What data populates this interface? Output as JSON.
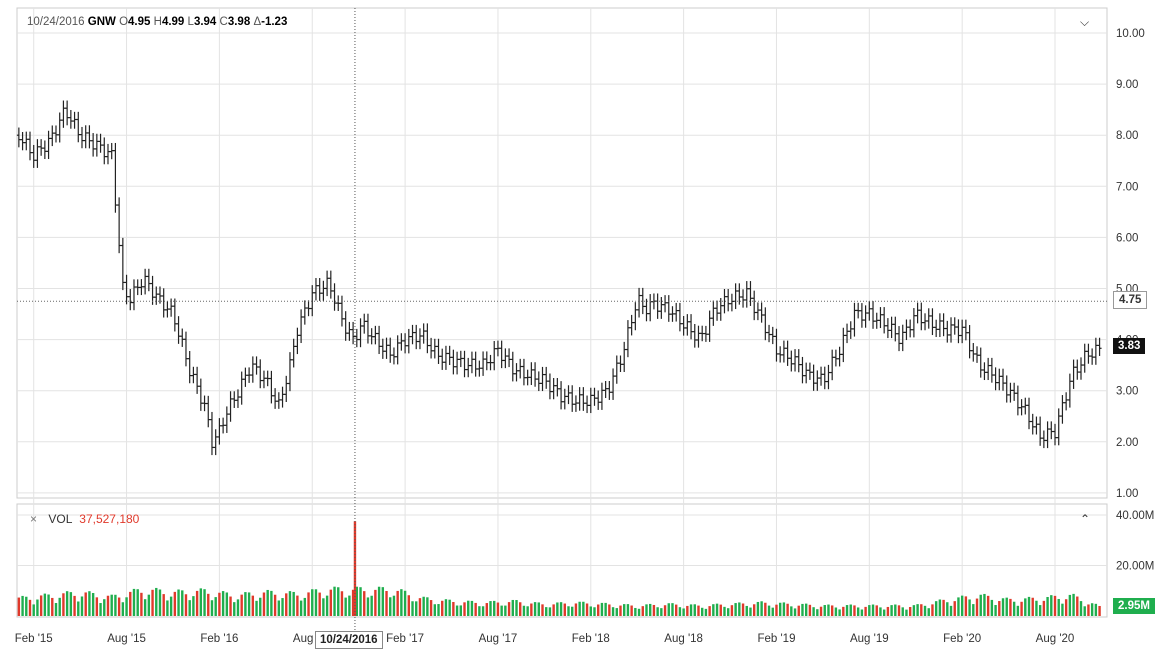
{
  "ohlc": {
    "date": "10/24/2016",
    "symbol": "GNW",
    "o_label": "O",
    "o_value": "4.95",
    "h_label": "H",
    "h_value": "4.99",
    "l_label": "L",
    "l_value": "3.94",
    "c_label": "C",
    "c_value": "3.98",
    "d_label": "Δ",
    "d_value": "-1.23"
  },
  "volume_panel": {
    "close_glyph": "×",
    "label": "VOL",
    "value": "37,527,180"
  },
  "crosshair": {
    "date_label": "10/24/2016"
  },
  "badges": {
    "reference": "4.75",
    "last": "3.83",
    "volume": "2.95M"
  },
  "colors": {
    "up": "#1fae4e",
    "down": "#e0392b",
    "bar": "#222222",
    "grid": "#e3e3e3"
  },
  "icons": {
    "collapse_price": "chevron-down-icon",
    "collapse_volume": "chevron-up-icon",
    "remove_volume": "close-icon"
  },
  "chart_data": [
    {
      "type": "bar",
      "subtype": "ohlc-price",
      "yticks": [
        "10.00",
        "9.00",
        "8.00",
        "7.00",
        "6.00",
        "5.00",
        "4.00",
        "3.00",
        "2.00",
        "1.00"
      ],
      "ylim": [
        1,
        10
      ],
      "x_tick_labels": [
        "Feb '15",
        "Aug '15",
        "Feb '16",
        "Aug '16",
        "Feb '17",
        "Aug '17",
        "Feb '18",
        "Aug '18",
        "Feb '19",
        "Aug '19",
        "Feb '20",
        "Aug '20"
      ],
      "x_tick_values": [
        2015.08,
        2015.58,
        2016.08,
        2016.58,
        2017.08,
        2017.58,
        2018.08,
        2018.58,
        2019.08,
        2019.58,
        2020.08,
        2020.58
      ],
      "xlim": [
        2014.99,
        2020.86
      ],
      "reference_price": 4.75,
      "last_price": 3.83,
      "crosshair_x": 2016.81,
      "series": [
        {
          "x": [
            2015.0,
            2015.08,
            2015.17,
            2015.25,
            2015.33,
            2015.42,
            2015.5,
            2015.56,
            2015.6,
            2015.67,
            2015.75,
            2015.83,
            2015.92,
            2016.0,
            2016.04,
            2016.08,
            2016.12,
            2016.17,
            2016.25,
            2016.33,
            2016.4,
            2016.46,
            2016.5,
            2016.58,
            2016.62,
            2016.67,
            2016.75,
            2016.8,
            2016.85,
            2016.92,
            2017.0,
            2017.08,
            2017.17,
            2017.25,
            2017.33,
            2017.42,
            2017.5,
            2017.58,
            2017.67,
            2017.75,
            2017.83,
            2017.92,
            2018.0,
            2018.08,
            2018.17,
            2018.25,
            2018.33,
            2018.37,
            2018.42,
            2018.5,
            2018.58,
            2018.67,
            2018.75,
            2018.83,
            2018.92,
            2019.0,
            2019.08,
            2019.17,
            2019.25,
            2019.33,
            2019.42,
            2019.5,
            2019.58,
            2019.67,
            2019.75,
            2019.83,
            2019.92,
            2020.0,
            2020.08,
            2020.17,
            2020.25,
            2020.33,
            2020.42,
            2020.5,
            2020.58,
            2020.67,
            2020.75,
            2020.83
          ],
          "y": [
            8.0,
            7.6,
            7.9,
            8.5,
            8.0,
            7.8,
            7.6,
            5.0,
            4.8,
            5.2,
            4.8,
            4.5,
            3.4,
            2.7,
            2.0,
            2.2,
            2.6,
            2.9,
            3.5,
            3.2,
            2.7,
            3.5,
            4.2,
            4.9,
            5.0,
            5.1,
            4.3,
            4.0,
            4.3,
            4.0,
            3.7,
            4.0,
            4.1,
            3.7,
            3.6,
            3.5,
            3.5,
            3.8,
            3.4,
            3.3,
            3.2,
            2.9,
            2.8,
            2.8,
            3.0,
            3.7,
            4.8,
            4.6,
            4.7,
            4.6,
            4.3,
            4.0,
            4.6,
            4.8,
            4.9,
            4.4,
            3.8,
            3.6,
            3.3,
            3.2,
            3.8,
            4.5,
            4.5,
            4.3,
            4.0,
            4.5,
            4.3,
            4.2,
            4.2,
            3.5,
            3.3,
            3.0,
            2.6,
            2.1,
            2.2,
            3.3,
            3.7,
            3.83
          ]
        }
      ]
    },
    {
      "type": "bar",
      "subtype": "volume",
      "yticks": [
        "40.00M",
        "20.00M"
      ],
      "ylim": [
        0,
        40000000
      ],
      "last_volume": 2950000,
      "spike": {
        "x": 2016.81,
        "value": 37527180
      },
      "series": [
        {
          "x": [
            2015.0,
            2015.17,
            2015.33,
            2015.5,
            2015.67,
            2015.83,
            2016.0,
            2016.17,
            2016.33,
            2016.5,
            2016.67,
            2016.81,
            2017.0,
            2017.17,
            2017.33,
            2017.5,
            2017.67,
            2017.83,
            2018.0,
            2018.17,
            2018.33,
            2018.5,
            2018.67,
            2018.83,
            2019.0,
            2019.17,
            2019.33,
            2019.5,
            2019.67,
            2019.83,
            2020.0,
            2020.17,
            2020.33,
            2020.5,
            2020.67,
            2020.83
          ],
          "y": [
            6000000,
            7000000,
            8000000,
            6500000,
            9000000,
            8000000,
            8500000,
            7000000,
            8000000,
            7500000,
            9000000,
            37527180,
            9500000,
            6000000,
            5000000,
            4500000,
            5000000,
            4000000,
            4500000,
            4000000,
            3500000,
            4000000,
            3500000,
            4000000,
            4500000,
            4000000,
            3500000,
            3500000,
            3500000,
            3500000,
            5500000,
            7000000,
            5500000,
            6000000,
            7000000,
            2950000
          ]
        }
      ]
    }
  ]
}
